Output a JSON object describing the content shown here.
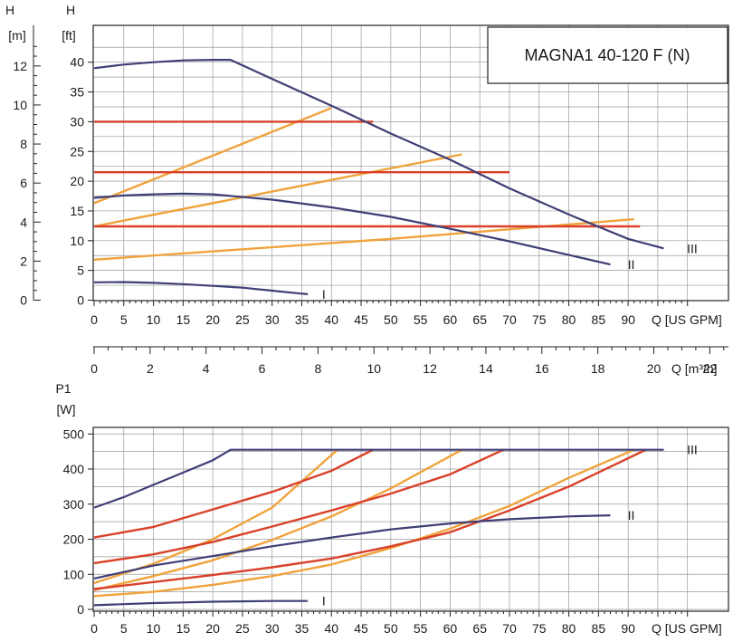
{
  "chart_data": [
    {
      "type": "line",
      "title": "MAGNA1 40-120 F (N)",
      "xlabel": "Q [US GPM]",
      "x_ticks": [
        "0",
        "5",
        "10",
        "15",
        "20",
        "25",
        "30",
        "35",
        "40",
        "45",
        "50",
        "55",
        "60",
        "65",
        "70",
        "75",
        "80",
        "85",
        "90"
      ],
      "xlim": [
        0,
        100
      ],
      "ylabel_ft": {
        "head": "H",
        "unit": "[ft]"
      },
      "ylim": [
        0,
        44
      ],
      "y_ticks_ft": [
        "0",
        "5",
        "10",
        "15",
        "20",
        "25",
        "30",
        "35",
        "40"
      ],
      "ylabel_m": {
        "head": "H",
        "unit": "[m]"
      },
      "y_ticks_m": [
        "0",
        "2",
        "4",
        "6",
        "8",
        "10",
        "12"
      ],
      "colors": {
        "max_curve": "#3f3f77",
        "constant_pressure": "#d9412a",
        "proportional_pressure": "#f0a33c"
      },
      "series": [
        {
          "name": "III",
          "kind": "max_curve",
          "points": [
            [
              0,
              39
            ],
            [
              5,
              39.6
            ],
            [
              10,
              40
            ],
            [
              15,
              40.3
            ],
            [
              20,
              40.4
            ],
            [
              23,
              40.4
            ],
            [
              30,
              37.2
            ],
            [
              40,
              32.7
            ],
            [
              50,
              28
            ],
            [
              60,
              23.6
            ],
            [
              70,
              18.8
            ],
            [
              80,
              14.4
            ],
            [
              90,
              10.3
            ],
            [
              96,
              8.7
            ]
          ]
        },
        {
          "name": "II",
          "kind": "max_curve",
          "points": [
            [
              0,
              17.2
            ],
            [
              5,
              17.6
            ],
            [
              10,
              17.8
            ],
            [
              15,
              17.9
            ],
            [
              20,
              17.8
            ],
            [
              30,
              16.9
            ],
            [
              40,
              15.6
            ],
            [
              50,
              14
            ],
            [
              60,
              12
            ],
            [
              70,
              9.9
            ],
            [
              80,
              7.6
            ],
            [
              87,
              6
            ]
          ]
        },
        {
          "name": "I",
          "kind": "max_curve",
          "points": [
            [
              0,
              3
            ],
            [
              5,
              3.05
            ],
            [
              10,
              2.9
            ],
            [
              15,
              2.7
            ],
            [
              20,
              2.4
            ],
            [
              25,
              2.1
            ],
            [
              30,
              1.6
            ],
            [
              35,
              1.1
            ],
            [
              36,
              1
            ]
          ]
        },
        {
          "name": "",
          "kind": "constant_pressure",
          "points": [
            [
              0,
              30
            ],
            [
              47,
              30
            ]
          ]
        },
        {
          "name": "",
          "kind": "constant_pressure",
          "points": [
            [
              0,
              21.5
            ],
            [
              70,
              21.5
            ]
          ]
        },
        {
          "name": "",
          "kind": "constant_pressure",
          "points": [
            [
              0,
              12.4
            ],
            [
              92,
              12.4
            ]
          ]
        },
        {
          "name": "",
          "kind": "proportional_pressure",
          "points": [
            [
              0,
              16.3
            ],
            [
              40,
              32.3
            ]
          ]
        },
        {
          "name": "",
          "kind": "proportional_pressure",
          "points": [
            [
              0,
              12.4
            ],
            [
              62,
              24.5
            ]
          ]
        },
        {
          "name": "",
          "kind": "proportional_pressure",
          "points": [
            [
              0,
              6.8
            ],
            [
              50,
              10.3
            ],
            [
              91,
              13.6
            ]
          ]
        }
      ],
      "curve_labels": [
        {
          "text": "I",
          "x": 37.5,
          "y": 1
        },
        {
          "text": "II",
          "x": 89,
          "y": 6
        },
        {
          "text": "III",
          "x": 99,
          "y": 8.7
        }
      ],
      "second_xaxis": {
        "label": "Q [m³/h]",
        "ticks": [
          "0",
          "2",
          "4",
          "6",
          "8",
          "10",
          "12",
          "14",
          "16",
          "18",
          "20",
          "22"
        ],
        "max": 22.7
      }
    },
    {
      "type": "line",
      "xlabel": "Q [US GPM]",
      "x_ticks": [
        "0",
        "5",
        "10",
        "15",
        "20",
        "25",
        "30",
        "35",
        "40",
        "45",
        "50",
        "55",
        "60",
        "65",
        "70",
        "75",
        "80",
        "85",
        "90"
      ],
      "xlim": [
        0,
        100
      ],
      "ylabel": {
        "head": "P1",
        "unit": "[W]"
      },
      "ylim": [
        0,
        520
      ],
      "y_ticks": [
        "0",
        "100",
        "200",
        "300",
        "400",
        "500"
      ],
      "series": [
        {
          "name": "III",
          "kind": "max_curve",
          "points": [
            [
              0,
              290
            ],
            [
              5,
              320
            ],
            [
              10,
              355
            ],
            [
              15,
              390
            ],
            [
              20,
              425
            ],
            [
              23,
              455
            ],
            [
              96,
              455
            ]
          ]
        },
        {
          "name": "II",
          "kind": "max_curve",
          "points": [
            [
              0,
              88
            ],
            [
              10,
              125
            ],
            [
              20,
              152
            ],
            [
              30,
              180
            ],
            [
              40,
              205
            ],
            [
              50,
              228
            ],
            [
              60,
              245
            ],
            [
              70,
              257
            ],
            [
              80,
              265
            ],
            [
              87,
              268
            ]
          ]
        },
        {
          "name": "I",
          "kind": "max_curve",
          "points": [
            [
              0,
              12
            ],
            [
              5,
              15
            ],
            [
              10,
              18
            ],
            [
              15,
              20
            ],
            [
              20,
              22
            ],
            [
              25,
              23
            ],
            [
              30,
              24
            ],
            [
              36,
              24
            ]
          ]
        },
        {
          "name": "",
          "kind": "constant_pressure",
          "points": [
            [
              0,
              205
            ],
            [
              10,
              235
            ],
            [
              20,
              285
            ],
            [
              30,
              335
            ],
            [
              40,
              395
            ],
            [
              47,
              455
            ]
          ]
        },
        {
          "name": "",
          "kind": "constant_pressure",
          "points": [
            [
              0,
              132
            ],
            [
              10,
              157
            ],
            [
              20,
              192
            ],
            [
              30,
              236
            ],
            [
              40,
              282
            ],
            [
              50,
              330
            ],
            [
              60,
              385
            ],
            [
              69,
              455
            ]
          ]
        },
        {
          "name": "",
          "kind": "constant_pressure",
          "points": [
            [
              0,
              58
            ],
            [
              10,
              78
            ],
            [
              20,
              98
            ],
            [
              30,
              120
            ],
            [
              40,
              145
            ],
            [
              50,
              180
            ],
            [
              60,
              220
            ],
            [
              70,
              282
            ],
            [
              80,
              350
            ],
            [
              93,
              455
            ]
          ]
        },
        {
          "name": "",
          "kind": "proportional_pressure",
          "points": [
            [
              0,
              75
            ],
            [
              10,
              130
            ],
            [
              20,
              200
            ],
            [
              30,
              290
            ],
            [
              41,
              455
            ]
          ]
        },
        {
          "name": "",
          "kind": "proportional_pressure",
          "points": [
            [
              0,
              55
            ],
            [
              10,
              95
            ],
            [
              20,
              140
            ],
            [
              30,
              198
            ],
            [
              40,
              265
            ],
            [
              50,
              345
            ],
            [
              62,
              455
            ]
          ]
        },
        {
          "name": "",
          "kind": "proportional_pressure",
          "points": [
            [
              0,
              38
            ],
            [
              10,
              50
            ],
            [
              20,
              70
            ],
            [
              30,
              95
            ],
            [
              40,
              128
            ],
            [
              50,
              175
            ],
            [
              60,
              230
            ],
            [
              70,
              295
            ],
            [
              80,
              375
            ],
            [
              91,
              455
            ]
          ]
        }
      ],
      "curve_labels": [
        {
          "text": "I",
          "x": 37.5,
          "y": 24
        },
        {
          "text": "II",
          "x": 89,
          "y": 268
        },
        {
          "text": "III",
          "x": 99,
          "y": 455
        }
      ]
    }
  ]
}
